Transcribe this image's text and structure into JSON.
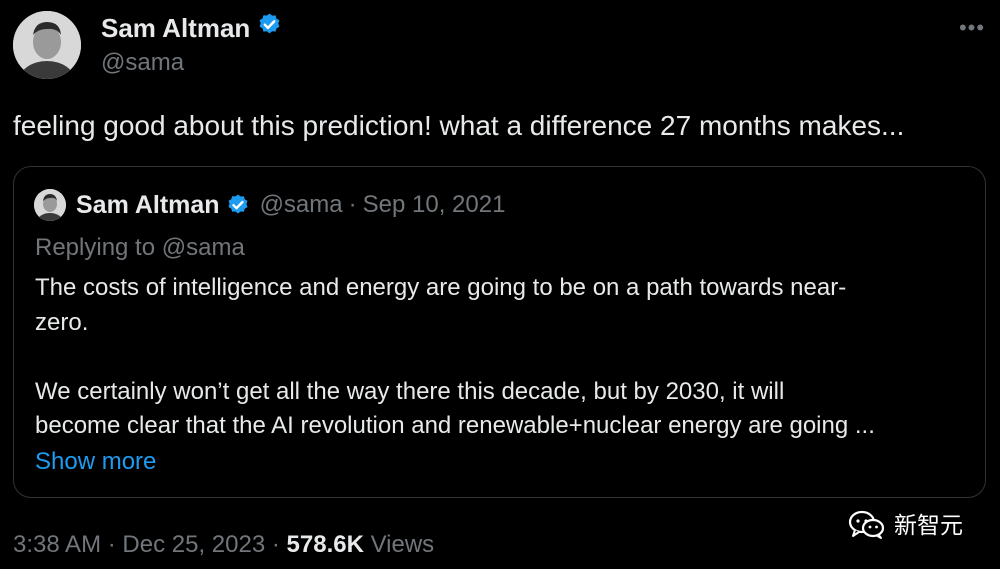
{
  "author": {
    "name": "Sam Altman",
    "handle": "@sama",
    "verified": true
  },
  "tweet": {
    "text": "feeling good about this prediction! what a difference 27 months makes..."
  },
  "quoted_tweet": {
    "author_name": "Sam Altman",
    "handle": "@sama",
    "separator": "·",
    "date": "Sep 10, 2021",
    "replying_to": "Replying to @sama",
    "paragraph_1_line_1": "The costs of intelligence and energy are going to be on a path towards near-",
    "paragraph_1_line_2": "zero.",
    "paragraph_2_line_1": "We certainly won’t get all the way there this decade, but by 2030, it will",
    "paragraph_2_line_2": "become clear that the AI revolution and renewable+nuclear energy are going ...",
    "show_more_label": "Show more"
  },
  "footer": {
    "time": "3:38 AM",
    "separator": "·",
    "date": "Dec 25, 2023",
    "separator_2": "·",
    "views_count": "578.6K",
    "views_label": "Views"
  },
  "watermark": {
    "text": "新智元"
  },
  "colors": {
    "background": "#000000",
    "text_primary": "#e7e9ea",
    "text_secondary": "#71767b",
    "link": "#1d9bf0",
    "verified_badge": "#1d9bf0",
    "card_border": "#2f3336"
  },
  "icons": {
    "verified": "verified-badge-icon",
    "more": "more-horizontal-icon",
    "watermark_logo": "wechat-icon"
  }
}
